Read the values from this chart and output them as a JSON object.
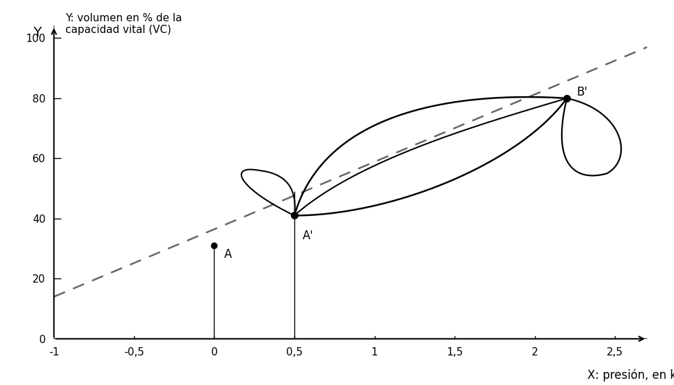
{
  "ylabel": "Y: volumen en % de la\ncapacidad vital (VC)",
  "xlabel": "X: presión, en kPa",
  "xlim": [
    -1,
    2.7
  ],
  "ylim": [
    0,
    105
  ],
  "xticks": [
    -1,
    -0.5,
    0,
    0.5,
    1,
    1.5,
    2,
    2.5
  ],
  "yticks": [
    0,
    20,
    40,
    60,
    80,
    100
  ],
  "point_A": [
    0.0,
    31
  ],
  "point_A_prime": [
    0.5,
    41
  ],
  "point_B_prime": [
    2.2,
    80
  ],
  "dashed_line": {
    "x": [
      -1,
      2.7
    ],
    "y": [
      14,
      97
    ]
  },
  "bg_color": "#ffffff",
  "line_color": "#000000",
  "dashed_color": "#666666"
}
